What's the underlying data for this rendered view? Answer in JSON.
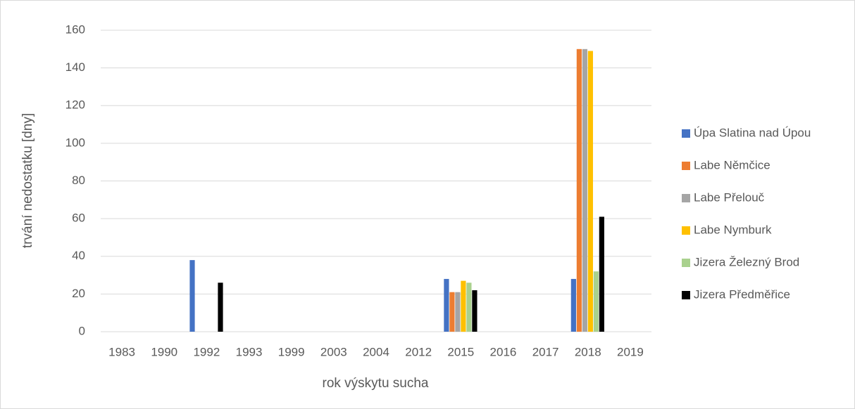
{
  "chart_data": {
    "type": "bar",
    "x_label": "rok výskytu sucha",
    "y_label": "trvání nedostatku [dny]",
    "categories": [
      "1983",
      "1990",
      "1992",
      "1993",
      "1999",
      "2003",
      "2004",
      "2012",
      "2015",
      "2016",
      "2017",
      "2018",
      "2019"
    ],
    "series": [
      {
        "name": "Úpa Slatina nad Úpou",
        "color": "#4472c4",
        "values": [
          0,
          0,
          38,
          0,
          0,
          0,
          0,
          0,
          28,
          0,
          0,
          28,
          0
        ]
      },
      {
        "name": "Labe Němčice",
        "color": "#ed7d31",
        "values": [
          0,
          0,
          0,
          0,
          0,
          0,
          0,
          0,
          21,
          0,
          0,
          150,
          0
        ]
      },
      {
        "name": "Labe Přelouč",
        "color": "#a5a5a5",
        "values": [
          0,
          0,
          0,
          0,
          0,
          0,
          0,
          0,
          21,
          0,
          0,
          150,
          0
        ]
      },
      {
        "name": "Labe Nymburk",
        "color": "#ffc000",
        "values": [
          0,
          0,
          0,
          0,
          0,
          0,
          0,
          0,
          27,
          0,
          0,
          149,
          0
        ]
      },
      {
        "name": "Jizera Železný Brod",
        "color": "#a9d18e",
        "values": [
          0,
          0,
          0,
          0,
          0,
          0,
          0,
          0,
          26,
          0,
          0,
          32,
          0
        ]
      },
      {
        "name": "Jizera Předměřice",
        "color": "#000000",
        "values": [
          0,
          0,
          26,
          0,
          0,
          0,
          0,
          0,
          22,
          0,
          0,
          61,
          0
        ]
      }
    ],
    "ylim": [
      0,
      160
    ],
    "yticks": [
      0,
      20,
      40,
      60,
      80,
      100,
      120,
      140,
      160
    ],
    "grid": true,
    "legend": "right"
  }
}
